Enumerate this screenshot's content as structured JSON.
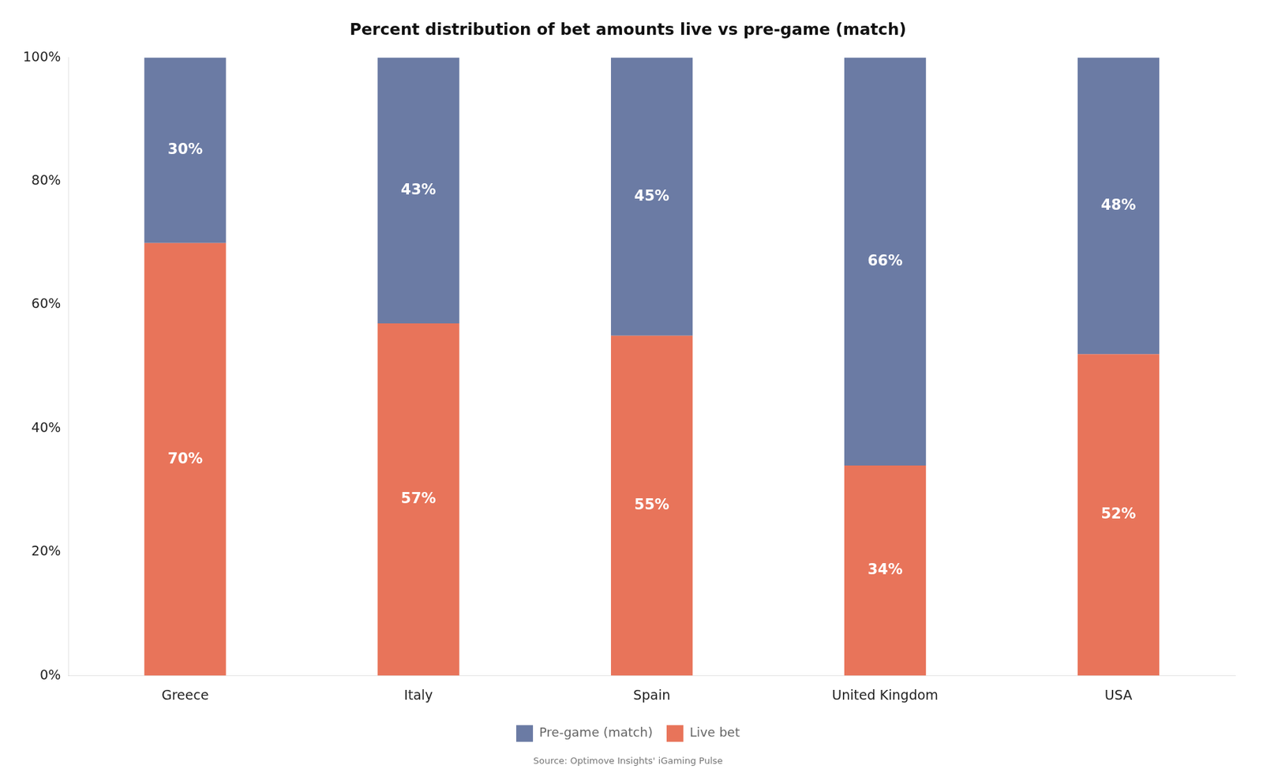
{
  "chart_data": {
    "type": "bar",
    "title": "Percent distribution of bet amounts live vs pre-game (match)",
    "categories": [
      "Greece",
      "Italy",
      "Spain",
      "United Kingdom",
      "USA"
    ],
    "stacked": true,
    "series": [
      {
        "name": "Live bet",
        "color": "#E8745A",
        "values": [
          70,
          57,
          55,
          34,
          52
        ],
        "value_labels": [
          "70%",
          "57%",
          "55%",
          "34%",
          "52%"
        ]
      },
      {
        "name": "Pre-game (match)",
        "color": "#6B7BA4",
        "values": [
          30,
          43,
          45,
          66,
          48
        ],
        "value_labels": [
          "30%",
          "43%",
          "45%",
          "66%",
          "48%"
        ]
      }
    ],
    "data_labels": true,
    "ylim": [
      0,
      100
    ],
    "yticks": [
      {
        "value": 0,
        "label": "0%"
      },
      {
        "value": 20,
        "label": "20%"
      },
      {
        "value": 40,
        "label": "40%"
      },
      {
        "value": 60,
        "label": "60%"
      },
      {
        "value": 80,
        "label": "80%"
      },
      {
        "value": 100,
        "label": "100%"
      }
    ],
    "grid": false,
    "legend": "bottom",
    "annotations": [
      "Source: Optimove Insights' iGaming Pulse"
    ]
  }
}
